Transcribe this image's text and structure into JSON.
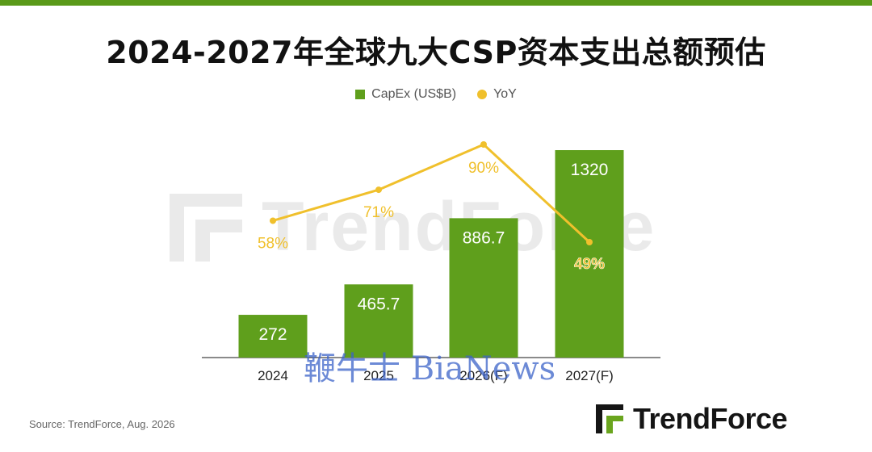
{
  "title": "2024-2027年全球九大CSP资本支出总额预估",
  "legend": {
    "bar_label": "CapEx (US$B)",
    "line_label": "YoY"
  },
  "colors": {
    "bar": "#5f9f1c",
    "line": "#f0c02c",
    "accent_bar": "#5a9a1a"
  },
  "source": "Source: TrendForce, Aug. 2026",
  "logo_text": "TrendForce",
  "watermark_bg": "TrendForce",
  "watermark_fg": "鞭牛士 BiaNews",
  "chart_data": {
    "type": "bar",
    "categories": [
      "2024",
      "2025",
      "2026(F)",
      "2027(F)"
    ],
    "series": [
      {
        "name": "CapEx (US$B)",
        "type": "bar",
        "values": [
          272,
          465.7,
          886.7,
          1320
        ],
        "labels": [
          "272",
          "465.7",
          "886.7",
          "1320"
        ]
      },
      {
        "name": "YoY",
        "type": "line",
        "values": [
          58,
          71,
          90,
          49
        ],
        "labels": [
          "58%",
          "71%",
          "90%",
          "49%"
        ]
      }
    ],
    "title": "2024-2027年全球九大CSP资本支出总额预估",
    "grid": false,
    "legend_position": "top-center"
  }
}
